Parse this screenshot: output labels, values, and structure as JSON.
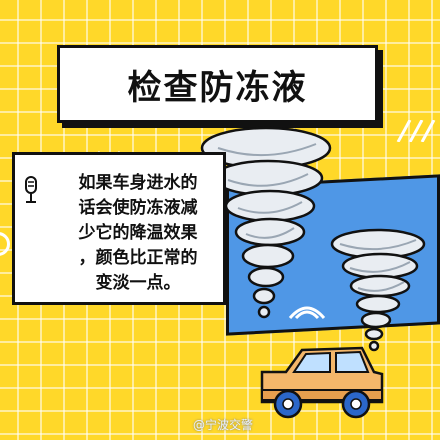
{
  "title": "检查防冻液",
  "body_lines": [
    "如果车身进水的",
    "话会使防冻液减",
    "少它的降温效果",
    "，颜色比正常的",
    "变淡一点。"
  ],
  "watermark": "@宁波交警",
  "colors": {
    "background": "#ffd829",
    "grid": "#ffffff",
    "sky": "#4f97e6",
    "car_body": "#f4b76a",
    "car_wheel": "#2b67c9",
    "outline": "#111111"
  },
  "icons": [
    "microphone-icon",
    "tornado-illustration",
    "car-illustration"
  ]
}
